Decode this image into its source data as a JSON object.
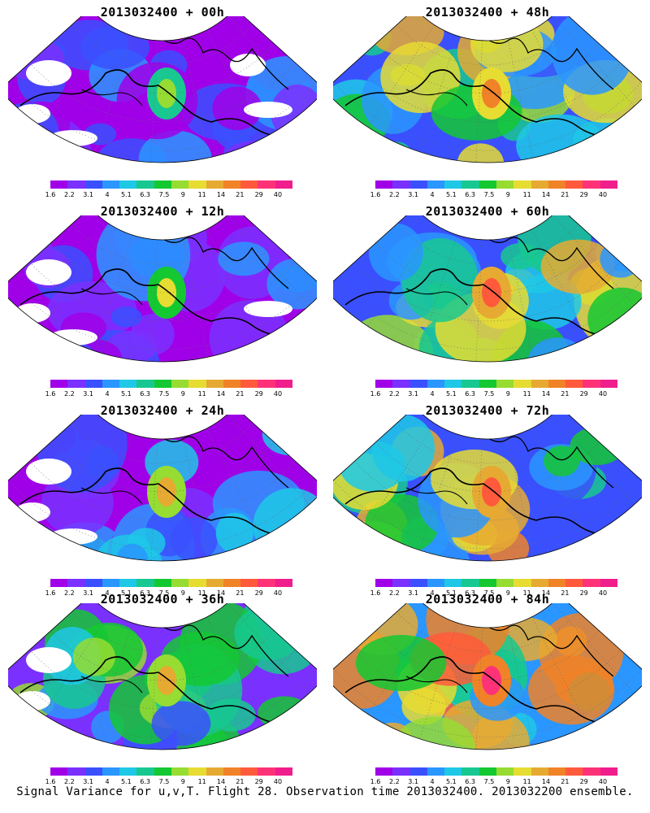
{
  "colorbar": {
    "colors": [
      "#a000e8",
      "#7a30ff",
      "#3a50ff",
      "#2a96ff",
      "#1ec8e6",
      "#18c890",
      "#14c832",
      "#96dc32",
      "#e6dc32",
      "#e6aa32",
      "#f08228",
      "#ff5a3c",
      "#ff3278",
      "#f01e8c"
    ],
    "labels": [
      "1.6",
      "2.2",
      "3.1",
      "4",
      "5.1",
      "6.3",
      "7.5",
      "9",
      "11",
      "14",
      "21",
      "29",
      "40"
    ]
  },
  "panels": [
    {
      "title": "2013032400 + 00h",
      "intensity": 0.15,
      "white_gaps": true
    },
    {
      "title": "2013032400 + 48h",
      "intensity": 0.6,
      "white_gaps": false
    },
    {
      "title": "2013032400 + 12h",
      "intensity": 0.28,
      "white_gaps": true
    },
    {
      "title": "2013032400 + 60h",
      "intensity": 0.68,
      "white_gaps": false
    },
    {
      "title": "2013032400 + 24h",
      "intensity": 0.38,
      "white_gaps": true
    },
    {
      "title": "2013032400 + 72h",
      "intensity": 0.74,
      "white_gaps": false
    },
    {
      "title": "2013032400 + 36h",
      "intensity": 0.48,
      "white_gaps": true
    },
    {
      "title": "2013032400 + 84h",
      "intensity": 0.8,
      "white_gaps": false
    }
  ],
  "footer": "Signal Variance for u,v,T. Flight 28. Observation time 2013032400. 2013032200 ensemble."
}
